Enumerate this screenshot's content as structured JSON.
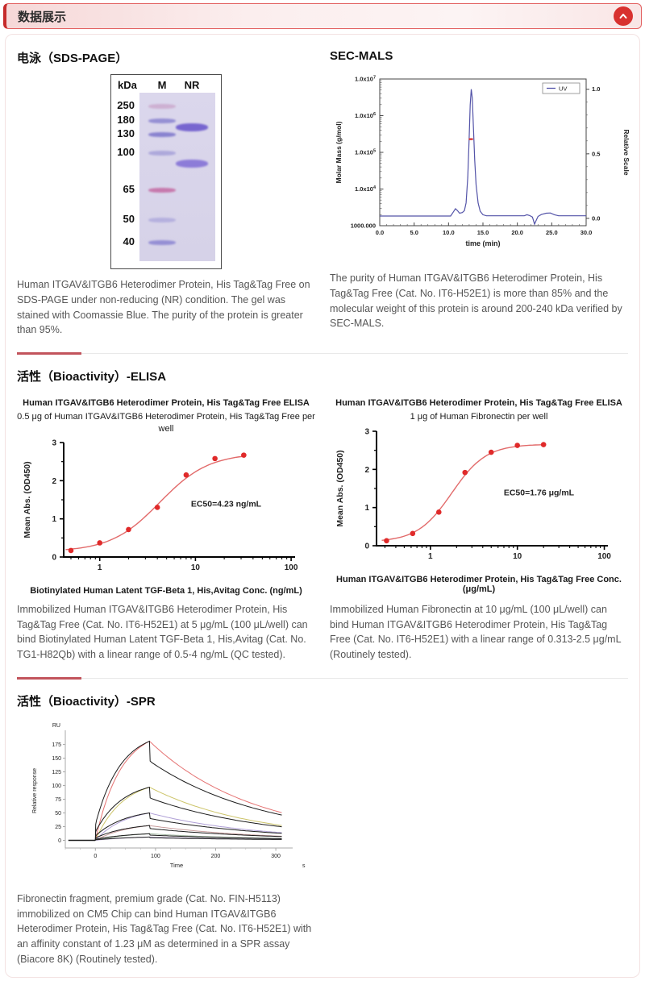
{
  "header": {
    "title": "数据展示"
  },
  "sds": {
    "title": "电泳（SDS-PAGE）",
    "caption": "Human ITGAV&ITGB6 Heterodimer Protein, His Tag&Tag Free on SDS-PAGE under non-reducing (NR) condition. The gel was stained with Coomassie Blue. The purity of the protein is greater than 95%.",
    "gel": {
      "unit": "kDa",
      "lanes": [
        "M",
        "NR"
      ],
      "markers": [
        {
          "label": "250",
          "y": 0.082,
          "color": "#c08ab8",
          "alpha": 0.5
        },
        {
          "label": "180",
          "y": 0.168,
          "color": "#7b74cb",
          "alpha": 0.72
        },
        {
          "label": "130",
          "y": 0.25,
          "color": "#736cc8",
          "alpha": 0.78
        },
        {
          "label": "100",
          "y": 0.36,
          "color": "#8e88d0",
          "alpha": 0.58
        },
        {
          "label": "65",
          "y": 0.58,
          "color": "#c2609c",
          "alpha": 0.78
        },
        {
          "label": "50",
          "y": 0.755,
          "color": "#9a94d6",
          "alpha": 0.55
        },
        {
          "label": "40",
          "y": 0.89,
          "color": "#7a73cc",
          "alpha": 0.7
        }
      ],
      "sample_bands": [
        {
          "y": 0.207,
          "color": "#6a57cc",
          "alpha": 0.88
        },
        {
          "y": 0.423,
          "color": "#7a66d4",
          "alpha": 0.8
        }
      ]
    }
  },
  "sec_mals": {
    "title": "SEC-MALS",
    "caption": "The purity of Human ITGAV&ITGB6 Heterodimer Protein, His Tag&Tag Free (Cat. No. IT6-H52E1) is more than 85% and the molecular weight of this protein is around 200-240 kDa verified by SEC-MALS."
  },
  "elisa": {
    "title": "活性（Bioactivity）-ELISA",
    "left_caption": "Immobilized Human ITGAV&ITGB6 Heterodimer Protein, His Tag&Tag Free (Cat. No. IT6-H52E1) at 5 μg/mL (100 μL/well) can bind Biotinylated Human Latent TGF-Beta 1, His,Avitag (Cat. No. TG1-H82Qb) with a linear range of 0.5-4 ng/mL (QC tested).",
    "right_caption": "Immobilized Human Fibronectin at 10 μg/mL (100 μL/well) can bind Human ITGAV&ITGB6 Heterodimer Protein, His Tag&Tag Free (Cat. No. IT6-H52E1) with a linear range of 0.313-2.5 μg/mL (Routinely tested)."
  },
  "spr": {
    "title": "活性（Bioactivity）-SPR",
    "caption": "Fibronectin fragment, premium grade (Cat. No. FIN-H5113) immobilized on CM5 Chip can bind Human ITGAV&ITGB6 Heterodimer Protein, His Tag&Tag Free (Cat. No. IT6-H52E1) with an affinity constant of 1.23 μM as determined in a SPR assay (Biacore 8K) (Routinely tested)."
  },
  "chart_data": [
    {
      "id": "sec_mals",
      "type": "line",
      "xlabel": "time (min)",
      "ylabel_left": "Molar Mass (g/mol)",
      "ylabel_right": "Relative Scale",
      "xlim": [
        0,
        30
      ],
      "xticks": [
        "0.0",
        "5.0",
        "10.0",
        "15.0",
        "20.0",
        "25.0",
        "30.0"
      ],
      "yticks_left": [
        "1.0x10^7",
        "1.0x10^6",
        "1.0x10^5",
        "1.0x10^4",
        "1000.000"
      ],
      "yticks_right": [
        "1.0",
        "0.5",
        "0.0"
      ],
      "legend": [
        {
          "name": "UV",
          "color": "#5353a8"
        }
      ],
      "uv_points": [
        [
          0,
          0.018
        ],
        [
          10.3,
          0.018
        ],
        [
          10.7,
          0.05
        ],
        [
          11.0,
          0.075
        ],
        [
          11.3,
          0.06
        ],
        [
          11.6,
          0.04
        ],
        [
          12.0,
          0.045
        ],
        [
          12.3,
          0.06
        ],
        [
          12.55,
          0.12
        ],
        [
          12.8,
          0.32
        ],
        [
          13.0,
          0.62
        ],
        [
          13.15,
          0.88
        ],
        [
          13.3,
          1.0
        ],
        [
          13.45,
          0.93
        ],
        [
          13.6,
          0.72
        ],
        [
          13.8,
          0.45
        ],
        [
          14.0,
          0.26
        ],
        [
          14.3,
          0.12
        ],
        [
          14.6,
          0.055
        ],
        [
          15.0,
          0.028
        ],
        [
          15.5,
          0.02
        ],
        [
          21.0,
          0.02
        ],
        [
          21.4,
          0.028
        ],
        [
          21.8,
          0.022
        ],
        [
          22.2,
          0.01
        ],
        [
          22.5,
          -0.045
        ],
        [
          22.7,
          -0.02
        ],
        [
          23.0,
          0.015
        ],
        [
          23.5,
          0.03
        ],
        [
          24.2,
          0.04
        ],
        [
          24.8,
          0.042
        ],
        [
          25.4,
          0.028
        ],
        [
          26.0,
          0.02
        ],
        [
          30,
          0.02
        ]
      ],
      "molar_mass_mark": {
        "t1": 12.95,
        "t2": 13.55,
        "frac_from_top": 0.41,
        "color": "#d62828"
      }
    },
    {
      "id": "elisa_tgfb1",
      "type": "scatter",
      "title": "Human ITGAV&ITGB6 Heterodimer Protein, His Tag&Tag Free ELISA",
      "subtitle": "0.5 μg of Human ITGAV&ITGB6 Heterodimer Protein, His Tag&Tag Free per well",
      "xlabel": "Biotinylated Human Latent TGF-Beta 1, His,Avitag Conc. (ng/mL)",
      "ylabel": "Mean Abs. (OD450)",
      "annotation": "EC50=4.23 ng/mL",
      "xscale": "log",
      "xlim": [
        0.42,
        110
      ],
      "ylim": [
        0,
        3
      ],
      "xticks": [
        1,
        10,
        100
      ],
      "yticks": [
        0,
        1,
        2,
        3
      ],
      "x": [
        0.5,
        1,
        2,
        4,
        8,
        16,
        32
      ],
      "y": [
        0.17,
        0.37,
        0.72,
        1.3,
        2.15,
        2.58,
        2.67
      ],
      "fit": {
        "ec50": 4.23,
        "hill": 1.7,
        "top": 2.72,
        "bottom": 0.14
      },
      "point_color": "#e02a2a",
      "curve_color": "#e26a6a"
    },
    {
      "id": "elisa_fibronectin",
      "type": "scatter",
      "title": "Human ITGAV&ITGB6 Heterodimer Protein, His Tag&Tag Free ELISA",
      "subtitle": "1 μg of Human Fibronectin per well",
      "xlabel": "Human ITGAV&ITGB6 Heterodimer Protein, His Tag&Tag Free Conc. (μg/mL)",
      "ylabel": "Mean Abs. (OD450)",
      "annotation": "EC50=1.76 μg/mL",
      "xscale": "log",
      "xlim": [
        0.24,
        110
      ],
      "ylim": [
        0,
        3
      ],
      "xticks": [
        1,
        10,
        100
      ],
      "yticks": [
        0,
        1,
        2,
        3
      ],
      "x": [
        0.313,
        0.625,
        1.25,
        2.5,
        5,
        10,
        20
      ],
      "y": [
        0.13,
        0.32,
        0.88,
        1.92,
        2.45,
        2.63,
        2.65
      ],
      "fit": {
        "ec50": 1.76,
        "hill": 2.2,
        "top": 2.66,
        "bottom": 0.1
      },
      "point_color": "#e02a2a",
      "curve_color": "#e26a6a"
    },
    {
      "id": "spr",
      "type": "line",
      "corner_label": "RU",
      "xlabel": "Time",
      "x_unit_label": "s",
      "ylabel": "Relative response",
      "xlim": [
        -50,
        320
      ],
      "ylim": [
        -14,
        195
      ],
      "xticks": [
        0,
        100,
        200,
        300
      ],
      "yticks": [
        0,
        25,
        50,
        75,
        100,
        125,
        150,
        175
      ],
      "assoc_end_s": 90,
      "curve_end_s": 310,
      "series": [
        {
          "peak_ru": 181,
          "fit_color": "#e57373"
        },
        {
          "peak_ru": 97,
          "fit_color": "#cdc56b"
        },
        {
          "peak_ru": 50,
          "fit_color": "#af9fd6"
        },
        {
          "peak_ru": 27,
          "fit_color": "#c79c9c"
        },
        {
          "peak_ru": 12,
          "fit_color": "#9cb29c"
        },
        {
          "peak_ru": 6,
          "fit_color": "#bfb0d8"
        }
      ],
      "data_color": "#1c1c1c"
    }
  ]
}
